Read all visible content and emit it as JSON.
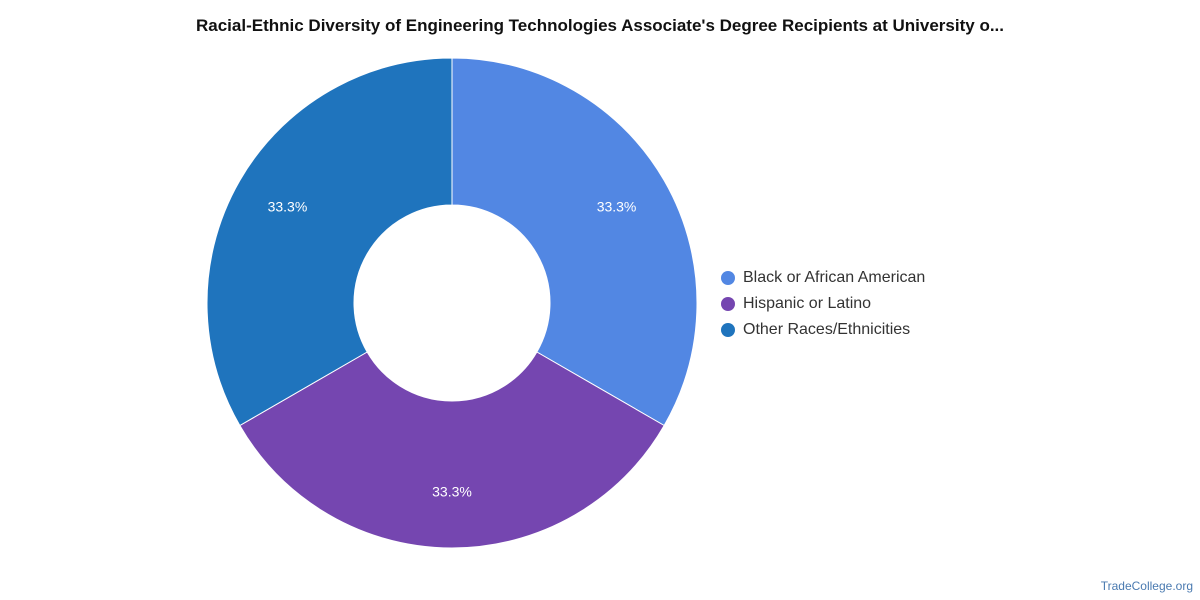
{
  "title": "Racial-Ethnic Diversity of Engineering Technologies Associate's Degree Recipients at University o...",
  "credit": "TradeCollege.org",
  "chart_data": {
    "type": "pie",
    "donut": true,
    "legend_position": "right",
    "slices": [
      {
        "label": "Black or African American",
        "value": 33.3,
        "display": "33.3%",
        "color": "#5287e3"
      },
      {
        "label": "Hispanic or Latino",
        "value": 33.3,
        "display": "33.3%",
        "color": "#7546b0"
      },
      {
        "label": "Other Races/Ethnicities",
        "value": 33.3,
        "display": "33.3%",
        "color": "#1f74bd"
      }
    ]
  }
}
